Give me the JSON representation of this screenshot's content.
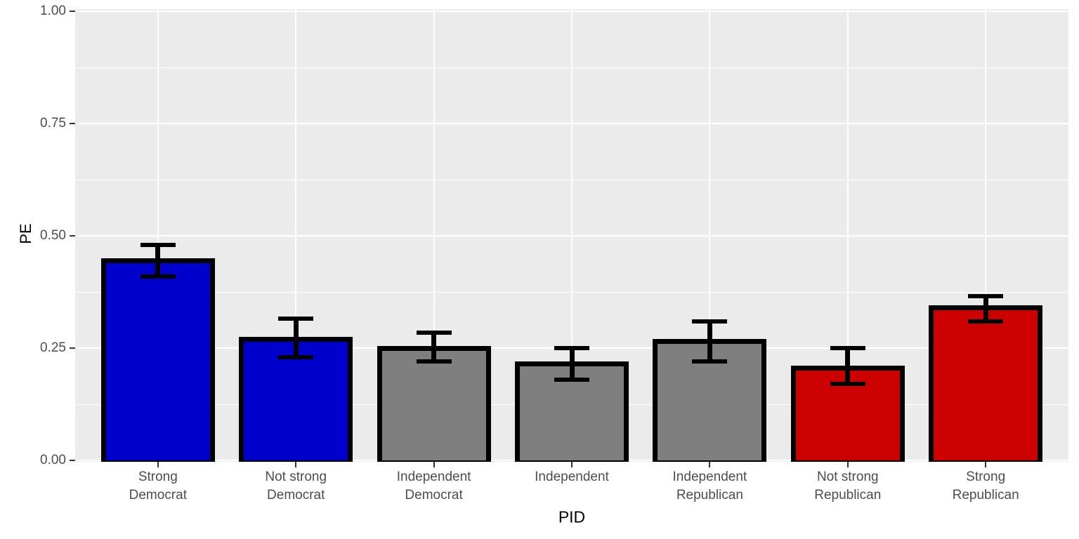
{
  "figure": {
    "background": "#FFFFFF",
    "panel_background": "#EBEBEB",
    "grid_color": "#FFFFFF",
    "tick_color": "#333333",
    "tick_label_color": "#4D4D4D",
    "axis_title_color": "#000000",
    "bar_stroke_color": "#000000",
    "error_bar_color": "#000000"
  },
  "chart_data": {
    "type": "bar",
    "title": "",
    "xlabel": "PID",
    "ylabel": "PE",
    "ylim": [
      0,
      1
    ],
    "grid": true,
    "legend": false,
    "yticks": [
      0,
      0.25,
      0.5,
      0.75,
      1
    ],
    "ytick_labels": [
      "0.00",
      "0.25",
      "0.50",
      "0.75",
      "1.00"
    ],
    "minor_yticks": [
      0.125,
      0.375,
      0.625,
      0.875
    ],
    "categories": [
      "Strong Democrat",
      "Not strong Democrat",
      "Independent Democrat",
      "Independent",
      "Independent Republican",
      "Not strong Republican",
      "Strong Republican"
    ],
    "category_label_lines": [
      [
        "Strong",
        "Democrat"
      ],
      [
        "Not strong",
        "Democrat"
      ],
      [
        "Independent",
        "Democrat"
      ],
      [
        "Independent"
      ],
      [
        "Independent",
        "Republican"
      ],
      [
        "Not strong",
        "Republican"
      ],
      [
        "Strong",
        "Republican"
      ]
    ],
    "series": [
      {
        "name": "PE",
        "values": [
          0.445,
          0.27,
          0.25,
          0.215,
          0.265,
          0.205,
          0.34
        ],
        "error_low": [
          0.41,
          0.23,
          0.22,
          0.18,
          0.22,
          0.17,
          0.31
        ],
        "error_high": [
          0.48,
          0.315,
          0.285,
          0.25,
          0.31,
          0.25,
          0.365
        ]
      }
    ],
    "bar_colors": [
      "#0000CD",
      "#0000CD",
      "#7F7F7F",
      "#7F7F7F",
      "#7F7F7F",
      "#CD0000",
      "#CD0000"
    ]
  }
}
